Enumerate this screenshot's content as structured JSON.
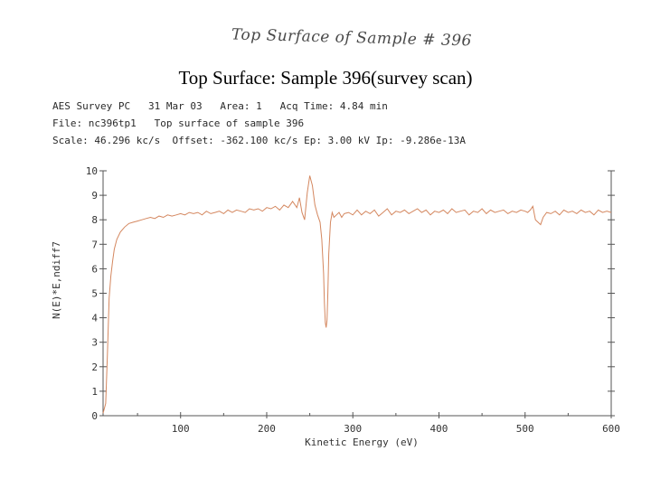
{
  "handwritten_note": "Top Surface of Sample # 396",
  "slide_title": "Top Surface: Sample 396(survey scan)",
  "header": {
    "line1": "AES Survey PC   31 Mar 03   Area: 1   Acq Time: 4.84 min",
    "line2": "File: nc396tp1   Top surface of sample 396",
    "line3": "Scale: 46.296 kc/s  Offset: -362.100 kc/s Ep: 3.00 kV Ip: -9.286e-13A"
  },
  "colors": {
    "trace": "#d4875f",
    "axis": "#555555",
    "text": "#333333"
  },
  "chart_data": {
    "type": "line",
    "xlabel": "Kinetic Energy (eV)",
    "ylabel": "N(E)*E,ndiff7",
    "xlim": [
      10,
      600
    ],
    "ylim": [
      0,
      10
    ],
    "xticks": [
      100,
      200,
      300,
      400,
      500,
      600
    ],
    "yticks": [
      0,
      1,
      2,
      3,
      4,
      5,
      6,
      7,
      8,
      9,
      10
    ],
    "grid": false,
    "series": [
      {
        "values_x": [
          10,
          13,
          15,
          17,
          19,
          21,
          23,
          26,
          30,
          35,
          40,
          45,
          50,
          55,
          60,
          65,
          70,
          75,
          80,
          85,
          90,
          95,
          100,
          105,
          110,
          115,
          120,
          125,
          130,
          135,
          140,
          145,
          150,
          155,
          160,
          165,
          170,
          175,
          180,
          185,
          190,
          195,
          200,
          205,
          210,
          215,
          220,
          225,
          230,
          235,
          238,
          241,
          244,
          247,
          250,
          253,
          256,
          259,
          262,
          264,
          266,
          267,
          268,
          269,
          270,
          271,
          272,
          274,
          276,
          278,
          281,
          284,
          287,
          290,
          295,
          300,
          305,
          310,
          315,
          320,
          325,
          330,
          335,
          340,
          345,
          350,
          355,
          360,
          365,
          370,
          375,
          380,
          385,
          390,
          395,
          400,
          405,
          410,
          415,
          420,
          425,
          430,
          435,
          440,
          445,
          450,
          455,
          460,
          465,
          470,
          475,
          480,
          485,
          490,
          495,
          500,
          503,
          506,
          509,
          512,
          515,
          518,
          521,
          525,
          530,
          535,
          540,
          545,
          550,
          555,
          560,
          565,
          570,
          575,
          580,
          585,
          590,
          595,
          600
        ],
        "values_y": [
          0.1,
          0.5,
          2.5,
          4.8,
          5.7,
          6.3,
          6.8,
          7.2,
          7.5,
          7.7,
          7.85,
          7.9,
          7.95,
          8.0,
          8.05,
          8.1,
          8.05,
          8.15,
          8.1,
          8.2,
          8.15,
          8.2,
          8.25,
          8.2,
          8.3,
          8.25,
          8.3,
          8.2,
          8.35,
          8.25,
          8.3,
          8.35,
          8.25,
          8.4,
          8.3,
          8.4,
          8.35,
          8.3,
          8.45,
          8.4,
          8.45,
          8.35,
          8.5,
          8.45,
          8.55,
          8.4,
          8.6,
          8.5,
          8.75,
          8.5,
          8.9,
          8.3,
          8.0,
          9.1,
          9.8,
          9.4,
          8.6,
          8.2,
          7.9,
          7.2,
          5.8,
          4.6,
          3.8,
          3.6,
          3.9,
          5.0,
          6.6,
          7.9,
          8.3,
          8.1,
          8.2,
          8.3,
          8.1,
          8.25,
          8.3,
          8.2,
          8.4,
          8.2,
          8.35,
          8.25,
          8.4,
          8.15,
          8.3,
          8.45,
          8.2,
          8.35,
          8.3,
          8.4,
          8.25,
          8.35,
          8.45,
          8.3,
          8.4,
          8.2,
          8.35,
          8.3,
          8.4,
          8.25,
          8.45,
          8.3,
          8.35,
          8.4,
          8.2,
          8.35,
          8.3,
          8.45,
          8.25,
          8.4,
          8.3,
          8.35,
          8.4,
          8.25,
          8.35,
          8.3,
          8.4,
          8.35,
          8.3,
          8.4,
          8.55,
          8.0,
          7.9,
          7.8,
          8.1,
          8.3,
          8.25,
          8.35,
          8.2,
          8.4,
          8.3,
          8.35,
          8.25,
          8.4,
          8.3,
          8.35,
          8.2,
          8.4,
          8.3,
          8.35,
          8.3
        ]
      }
    ]
  }
}
